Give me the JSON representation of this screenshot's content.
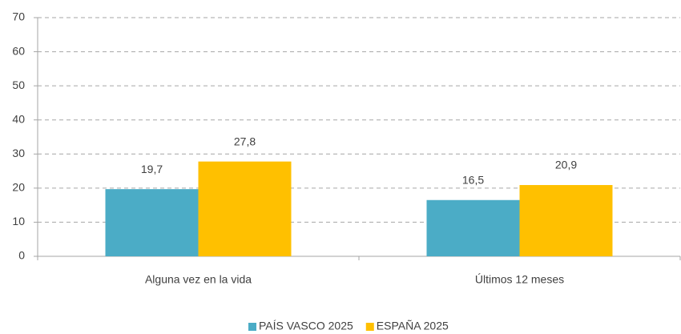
{
  "chart_data": {
    "type": "bar",
    "categories": [
      "Alguna vez en la vida",
      "Últimos 12 meses"
    ],
    "series": [
      {
        "name": "PAÍS VASCO 2025",
        "color": "#4bacc6",
        "values": [
          19.7,
          16.5
        ],
        "value_labels": [
          "19,7",
          "16,5"
        ]
      },
      {
        "name": "ESPAÑA 2025",
        "color": "#ffc000",
        "values": [
          27.8,
          20.9
        ],
        "value_labels": [
          "27,8",
          "20,9"
        ]
      }
    ],
    "ylim": [
      0,
      70
    ],
    "yticks": [
      0,
      10,
      20,
      30,
      40,
      50,
      60,
      70
    ],
    "grid": true,
    "legend": "bottom"
  }
}
